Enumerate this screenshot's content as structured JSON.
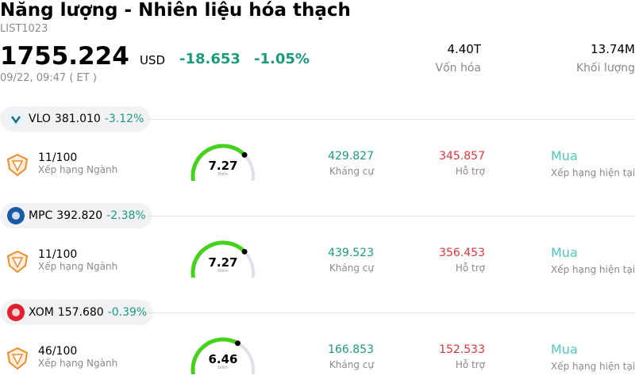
{
  "header": {
    "title": "Năng lượng - Nhiên liệu hóa thạch",
    "code": "LIST1023",
    "price": "1755.224",
    "currency": "USD",
    "change": "-18.653",
    "change_pct": "-1.05%",
    "time": "09/22, 09:47  ( ET )",
    "market_cap": "4.40T",
    "market_cap_label": "Vốn hóa",
    "volume": "13.74M",
    "volume_label": "Khối lượng"
  },
  "stocks": [
    {
      "ticker": "VLO",
      "price": "381.010",
      "change_pct": "-3.12%",
      "rank": "11/100",
      "rank_label": "Xếp hạng Ngành",
      "score": "7.27",
      "score_label": "Điểm",
      "resistance": "429.827",
      "resistance_label": "Kháng cự",
      "support": "345.857",
      "support_label": "Hỗ trợ",
      "rating": "Mua",
      "rating_label": "Xếp hạng hiện tại"
    },
    {
      "ticker": "MPC",
      "price": "392.820",
      "change_pct": "-2.38%",
      "rank": "11/100",
      "rank_label": "Xếp hạng Ngành",
      "score": "7.27",
      "score_label": "Điểm",
      "resistance": "439.523",
      "resistance_label": "Kháng cự",
      "support": "356.453",
      "support_label": "Hỗ trợ",
      "rating": "Mua",
      "rating_label": "Xếp hạng hiện tại"
    },
    {
      "ticker": "XOM",
      "price": "157.680",
      "change_pct": "-0.39%",
      "rank": "46/100",
      "rank_label": "Xếp hạng Ngành",
      "score": "6.46",
      "score_label": "Điểm",
      "resistance": "166.853",
      "resistance_label": "Kháng cự",
      "support": "152.533",
      "support_label": "Hỗ trợ",
      "rating": "Mua",
      "rating_label": "Xếp hạng hiện tại"
    }
  ]
}
